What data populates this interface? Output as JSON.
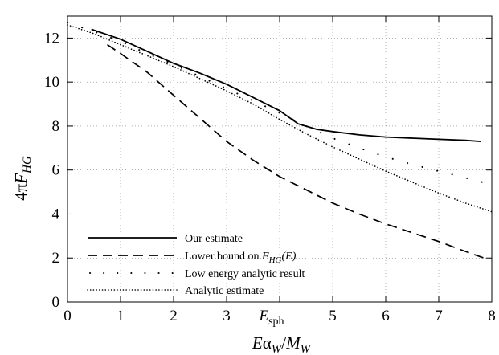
{
  "chart_data": {
    "type": "line",
    "xlabel": "Eα_W/M_W",
    "ylabel": "4πF_HG",
    "xlim": [
      0,
      8
    ],
    "ylim": [
      0,
      13
    ],
    "xticks": [
      0,
      1,
      2,
      3,
      5,
      6,
      7,
      8
    ],
    "yticks": [
      0,
      2,
      4,
      6,
      8,
      10,
      12
    ],
    "annotation": "E_sph",
    "annotation_x": 4.0,
    "grid": "dotted",
    "legend_position": "bottom-left",
    "series": [
      {
        "name": "Our estimate",
        "style": "solid",
        "x": [
          0.45,
          1.0,
          1.5,
          2.0,
          2.5,
          3.0,
          3.5,
          4.0,
          4.35,
          4.7,
          5.0,
          5.5,
          6.0,
          6.5,
          7.0,
          7.5,
          7.8
        ],
        "y": [
          12.4,
          11.95,
          11.4,
          10.85,
          10.4,
          9.9,
          9.3,
          8.7,
          8.1,
          7.85,
          7.75,
          7.6,
          7.5,
          7.45,
          7.4,
          7.35,
          7.3
        ]
      },
      {
        "name": "Lower bound on F_HG(E)",
        "style": "dashed",
        "x": [
          0.75,
          1.0,
          1.5,
          2.0,
          2.5,
          3.0,
          3.5,
          4.0,
          4.5,
          5.0,
          5.5,
          6.0,
          6.5,
          7.0,
          7.5,
          7.85
        ],
        "y": [
          11.7,
          11.3,
          10.45,
          9.4,
          8.35,
          7.3,
          6.45,
          5.7,
          5.1,
          4.5,
          4.0,
          3.55,
          3.15,
          2.75,
          2.3,
          2.0
        ]
      },
      {
        "name": "Low energy analytic result",
        "style": "sparse-dotted",
        "x": [
          0.0,
          0.5,
          1.0,
          1.5,
          2.0,
          2.5,
          3.0,
          3.5,
          4.0,
          4.5,
          5.0,
          5.5,
          6.0,
          6.5,
          7.0,
          7.5,
          7.9
        ],
        "y": [
          12.7,
          12.3,
          11.85,
          11.3,
          10.8,
          10.25,
          9.7,
          9.15,
          8.6,
          8.0,
          7.45,
          7.0,
          6.6,
          6.25,
          5.95,
          5.65,
          5.4
        ]
      },
      {
        "name": "Analytic estimate",
        "style": "dotted",
        "x": [
          0.0,
          0.5,
          1.0,
          1.5,
          2.0,
          2.5,
          3.0,
          3.5,
          4.0,
          4.5,
          5.0,
          5.5,
          6.0,
          6.5,
          7.0,
          7.5,
          8.0
        ],
        "y": [
          12.6,
          12.2,
          11.7,
          11.2,
          10.7,
          10.15,
          9.6,
          9.0,
          8.3,
          7.65,
          7.05,
          6.5,
          5.95,
          5.45,
          4.95,
          4.5,
          4.1
        ]
      }
    ]
  },
  "legend": {
    "items": [
      {
        "label": "Our estimate"
      },
      {
        "label_prefix": "Lower bound on ",
        "label_math": "F",
        "label_sub": "HG",
        "label_suffix": "(E)"
      },
      {
        "label": "Low energy analytic result"
      },
      {
        "label": "Analytic estimate"
      }
    ]
  },
  "axes": {
    "y_main": "4π",
    "y_italic": "F",
    "y_sub": "HG",
    "x_italic": "E",
    "x_alpha": "α",
    "x_alpha_sub": "W",
    "x_slash": "/",
    "x_m": "M",
    "x_m_sub": "W",
    "annot_italic": "E",
    "annot_sub": "sph"
  }
}
